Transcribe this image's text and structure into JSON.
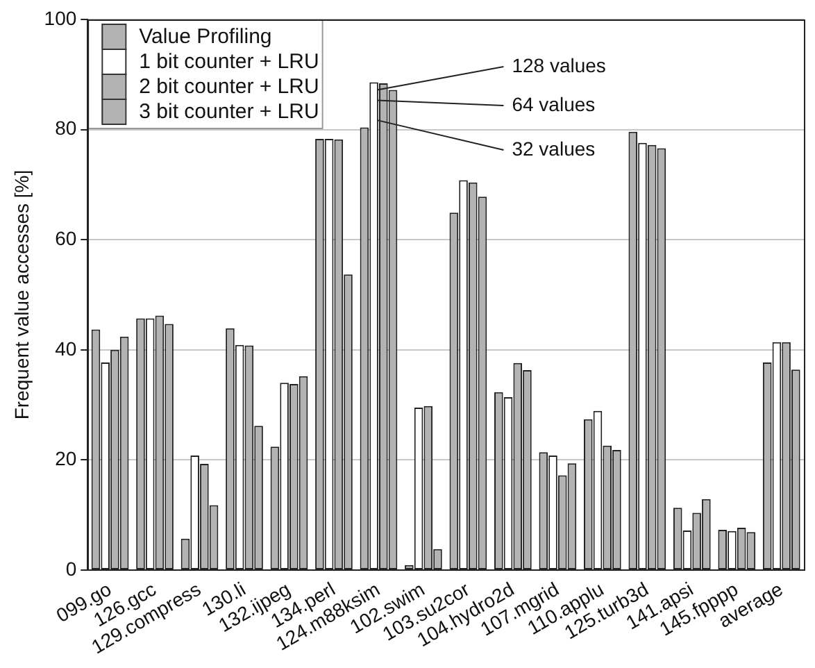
{
  "chart_data": {
    "type": "bar",
    "ylabel": "Frequent value accesses [%]",
    "categories": [
      "099.go",
      "126.gcc",
      "129.compress",
      "130.li",
      "132.ijpeg",
      "134.perl",
      "124.m88ksim",
      "102.swim",
      "103.su2cor",
      "104.hydro2d",
      "107.mgrid",
      "110.applu",
      "125.turb3d",
      "141.apsi",
      "145.fpppp",
      "average"
    ],
    "series": [
      {
        "name": "Value Profiling",
        "color": "#b3b3b3",
        "values": [
          43.7,
          45.7,
          5.7,
          43.9,
          22.4,
          78.3,
          80.4,
          0.9,
          64.9,
          32.3,
          21.4,
          27.4,
          79.6,
          11.3,
          7.3,
          37.7
        ]
      },
      {
        "name": "1 bit counter + LRU",
        "color": "#ffffff",
        "values": [
          37.7,
          45.7,
          20.8,
          40.9,
          34.0,
          78.3,
          88.6,
          29.5,
          70.8,
          31.4,
          20.8,
          28.9,
          77.6,
          7.2,
          7.1,
          41.4
        ]
      },
      {
        "name": "2 bit counter + LRU",
        "color": "#b3b3b3",
        "values": [
          40.0,
          46.2,
          19.3,
          40.8,
          33.8,
          78.2,
          88.4,
          29.8,
          70.4,
          37.6,
          17.2,
          22.6,
          77.2,
          10.4,
          7.7,
          41.4
        ]
      },
      {
        "name": "3 bit counter + LRU",
        "color": "#b3b3b3",
        "values": [
          42.4,
          44.7,
          11.8,
          26.2,
          35.2,
          53.7,
          87.2,
          3.8,
          67.8,
          36.3,
          19.4,
          21.8,
          76.6,
          12.9,
          6.9,
          36.4
        ]
      }
    ],
    "ylim": [
      0,
      100
    ],
    "yticks": [
      0,
      20,
      40,
      60,
      80,
      100
    ],
    "grid": "y",
    "legend": "top left",
    "annotations": [
      {
        "text": "128 values",
        "x": "124.m88ksim",
        "y": 87.2
      },
      {
        "text": "64 values",
        "x": "124.m88ksim",
        "y": 85.3
      },
      {
        "text": "32 values",
        "x": "124.m88ksim",
        "y": 81.7
      }
    ]
  }
}
